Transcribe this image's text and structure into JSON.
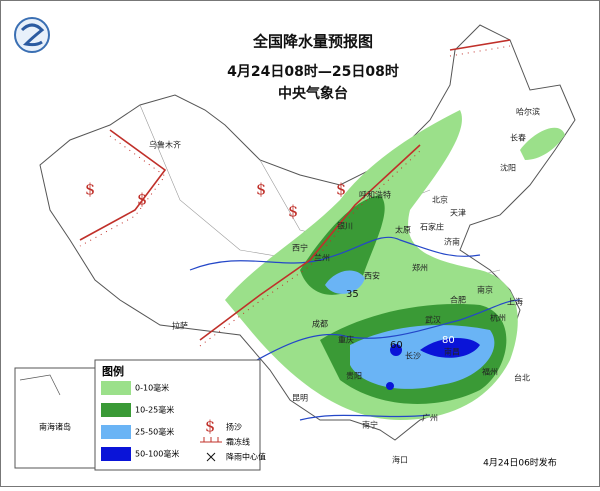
{
  "header": {
    "title": "全国降水量预报图",
    "period": "4月24日08时—25日08时",
    "issuer": "中央气象台"
  },
  "legend": {
    "title": "图例",
    "levels": [
      {
        "label": "0-10毫米",
        "color": "#9be08a"
      },
      {
        "label": "10-25毫米",
        "color": "#3a9a36"
      },
      {
        "label": "25-50毫米",
        "color": "#6ab4f5"
      },
      {
        "label": "50-100毫米",
        "color": "#0a14d8"
      }
    ],
    "symbols": [
      {
        "label": "扬沙"
      },
      {
        "label": "霜冻线"
      },
      {
        "label": "降雨中心值"
      }
    ]
  },
  "cities": [
    "乌鲁木齐",
    "哈尔滨",
    "长春",
    "沈阳",
    "呼和浩特",
    "北京",
    "天津",
    "石家庄",
    "太原",
    "济南",
    "银川",
    "西宁",
    "兰州",
    "郑州",
    "西安",
    "南京",
    "合肥",
    "上海",
    "成都",
    "武汉",
    "杭州",
    "拉萨",
    "重庆",
    "长沙",
    "南昌",
    "贵阳",
    "福州",
    "台北",
    "昆明",
    "南宁",
    "广州",
    "海口"
  ],
  "rain_centers": [
    "35",
    "60",
    "80"
  ],
  "inset_label": "南海诸岛",
  "footer": "4月24日06时发布"
}
